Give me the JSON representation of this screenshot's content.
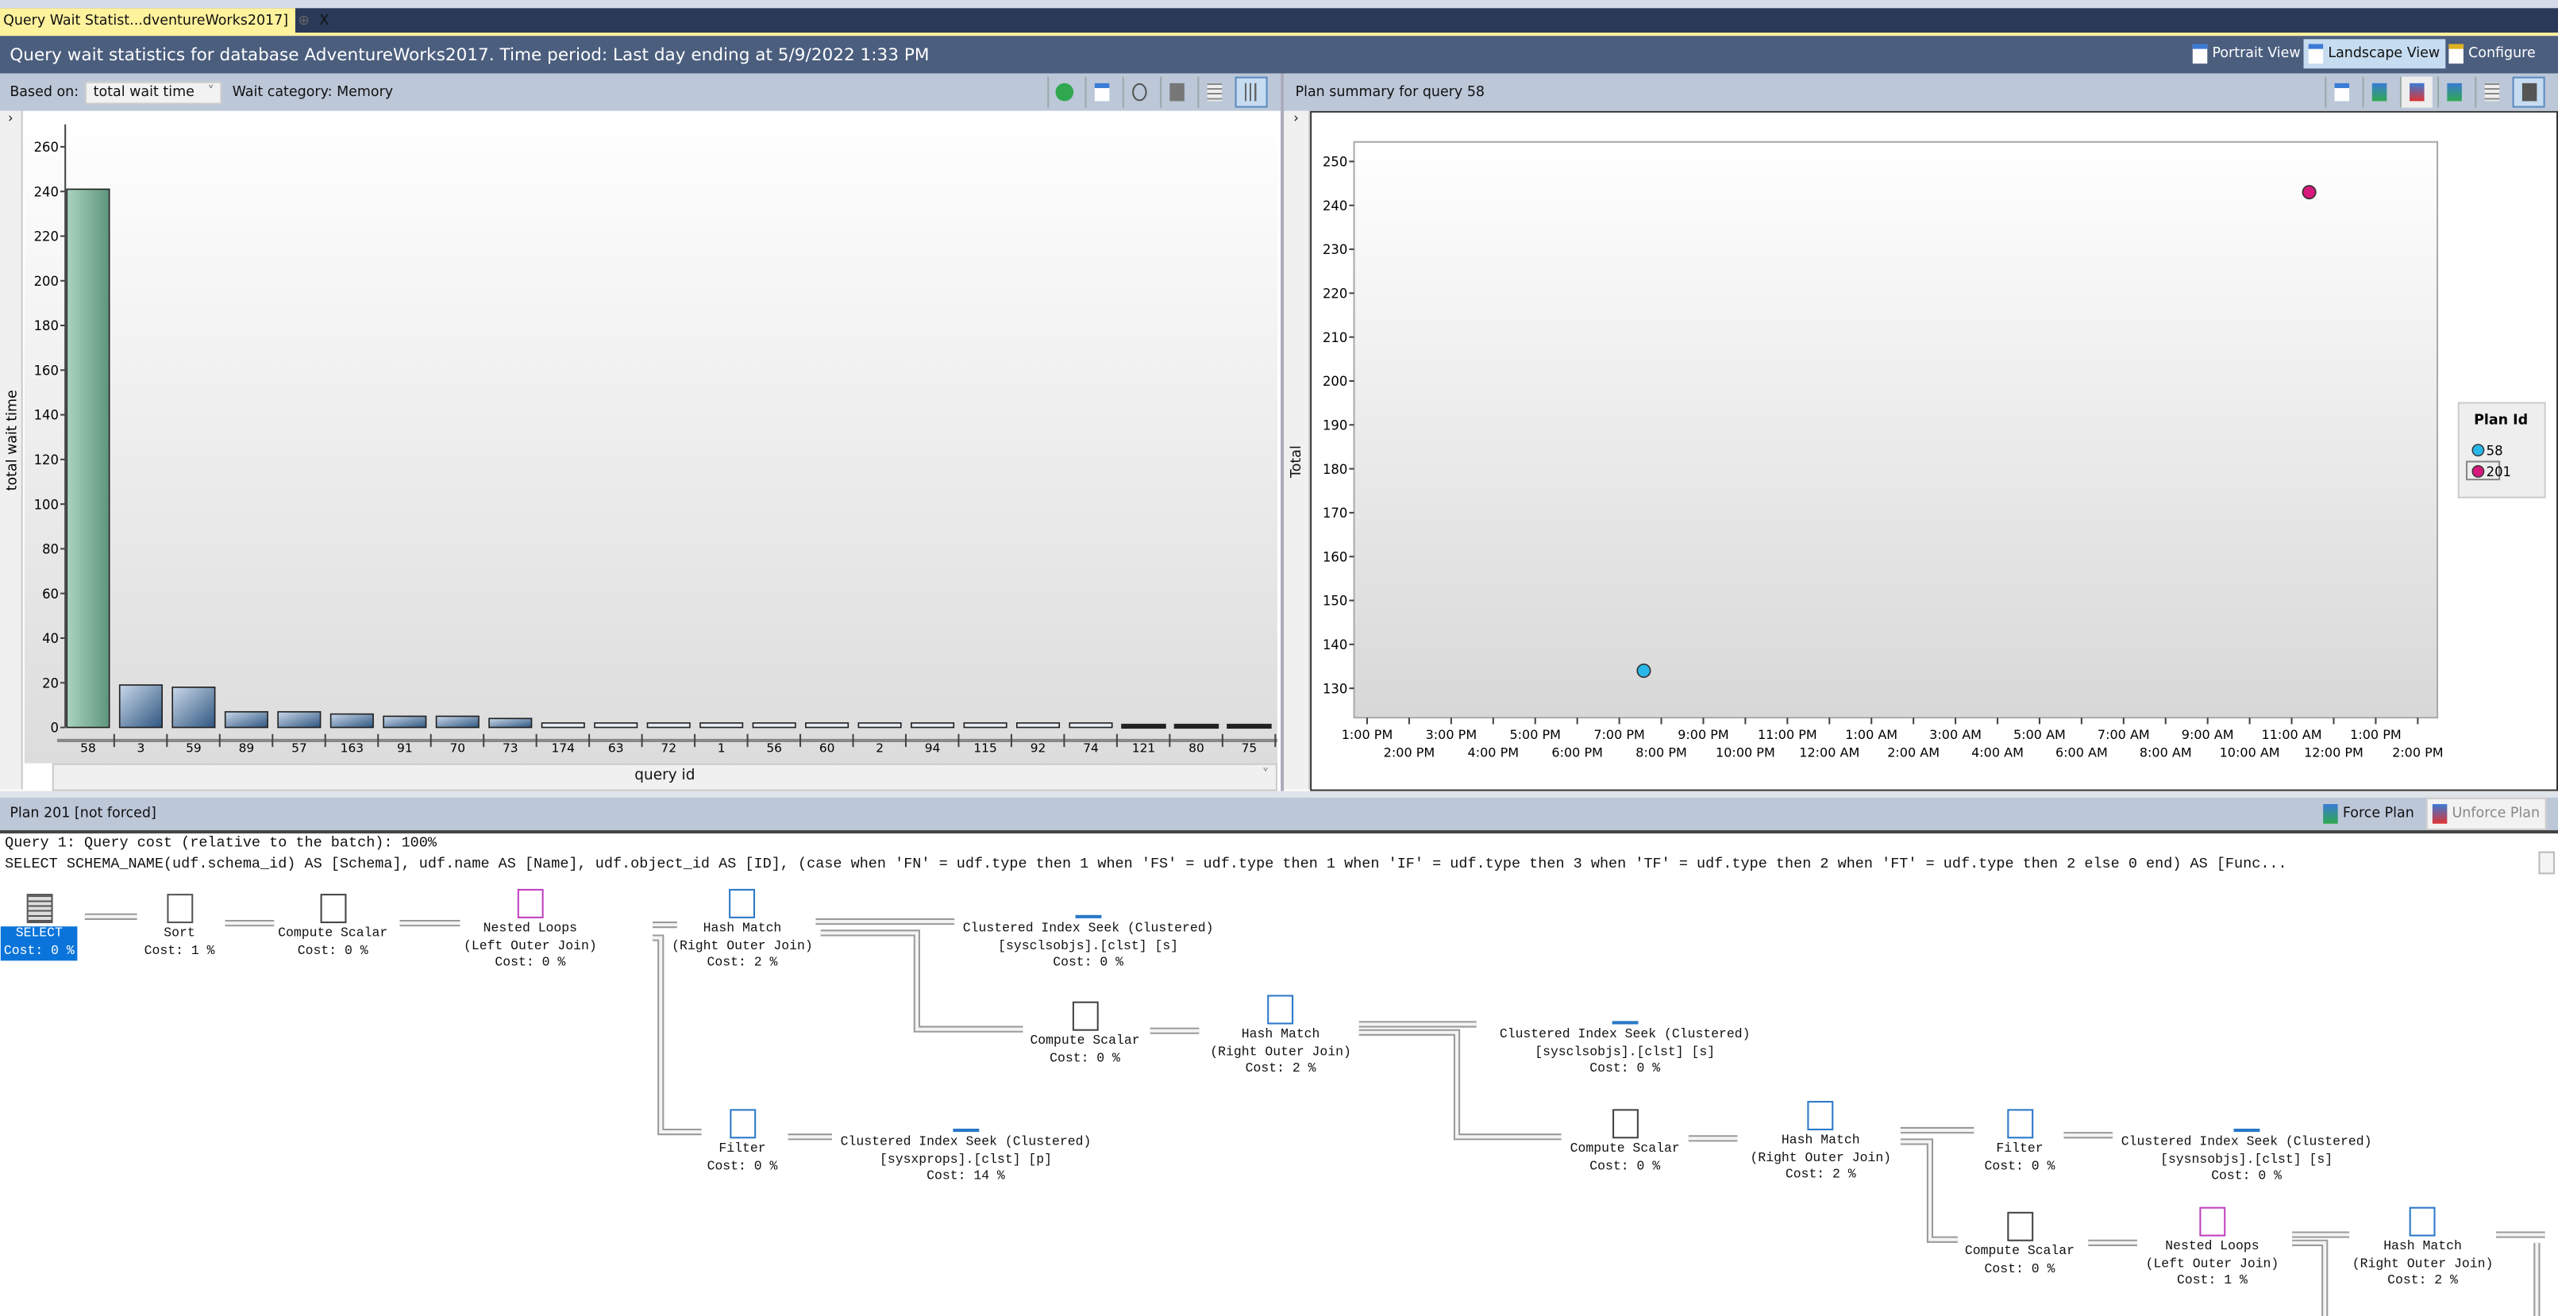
{
  "tab": {
    "title": "Query Wait Statist...dventureWorks2017]",
    "pin": "⊕",
    "close": "X"
  },
  "header": {
    "title": "Query wait statistics for database AdventureWorks2017. Time period: Last day ending at 5/9/2022 1:33 PM",
    "views": [
      {
        "label": "Portrait View"
      },
      {
        "label": "Landscape View"
      },
      {
        "label": "Configure"
      }
    ]
  },
  "left_toolbar": {
    "based_on_label": "Based on:",
    "based_on_value": "total wait time",
    "wait_category": "Wait category: Memory",
    "icons": [
      "back-icon",
      "refresh-icon",
      "track-query-icon",
      "view-query-icon",
      "grid-icon",
      "chart-icon"
    ]
  },
  "right_toolbar": {
    "title": "Plan summary for query 58",
    "icons": [
      "refresh-icon",
      "force-plan-icon",
      "unforce-plan-icon",
      "compare-plans-icon",
      "grid-icon",
      "chart-icon"
    ]
  },
  "chart_data": [
    {
      "type": "bar",
      "xlabel": "query id",
      "ylabel": "total wait time",
      "ylim": [
        0,
        270
      ],
      "yticks": [
        0,
        20,
        40,
        60,
        80,
        100,
        120,
        140,
        160,
        180,
        200,
        220,
        240,
        260
      ],
      "categories": [
        "58",
        "3",
        "59",
        "89",
        "57",
        "163",
        "91",
        "70",
        "73",
        "174",
        "63",
        "72",
        "1",
        "56",
        "60",
        "2",
        "94",
        "115",
        "92",
        "74",
        "121",
        "80",
        "75"
      ],
      "values": [
        241,
        19,
        18,
        7,
        7,
        6,
        5,
        5,
        4,
        2,
        2,
        2,
        2,
        2,
        2,
        2,
        2,
        2,
        2,
        2,
        0.5,
        0.5,
        0.5
      ],
      "highlight": "58",
      "colors": {
        "highlight": "#6a9e87",
        "bar": "#3b628f"
      }
    },
    {
      "type": "scatter",
      "ylabel": "Total",
      "ylim": [
        127,
        254
      ],
      "yticks": [
        130,
        140,
        150,
        160,
        170,
        180,
        190,
        200,
        210,
        220,
        230,
        240,
        250
      ],
      "xticks": [
        "1:00 PM",
        "2:00 PM",
        "3:00 PM",
        "4:00 PM",
        "5:00 PM",
        "6:00 PM",
        "7:00 PM",
        "8:00 PM",
        "9:00 PM",
        "10:00 PM",
        "11:00 PM",
        "12:00 AM",
        "1:00 AM",
        "2:00 AM",
        "3:00 AM",
        "4:00 AM",
        "5:00 AM",
        "6:00 AM",
        "7:00 AM",
        "8:00 AM",
        "9:00 AM",
        "10:00 AM",
        "11:00 AM",
        "12:00 PM",
        "1:00 PM",
        "2:00 PM"
      ],
      "legend_title": "Plan Id",
      "legend_position": "right",
      "series": [
        {
          "name": "58",
          "color": "#29b6e8",
          "points": [
            {
              "x": "7:35 PM",
              "y": 134
            }
          ]
        },
        {
          "name": "201",
          "color": "#d6197a",
          "points": [
            {
              "x": "11:25 AM",
              "y": 243
            }
          ]
        }
      ]
    }
  ],
  "plan": {
    "title": "Plan 201 [not forced]",
    "force": "Force Plan",
    "unforce": "Unforce Plan",
    "query_line": "Query 1: Query cost (relative to the batch): 100%",
    "sql": "SELECT SCHEMA_NAME(udf.schema_id) AS [Schema], udf.name AS [Name], udf.object_id AS [ID], (case when 'FN' = udf.type then 1 when 'FS' = udf.type then 1 when 'IF' = udf.type then 3 when 'TF' = udf.type then 2 when 'FT' = udf.type then 2 else 0 end) AS [Func...",
    "nodes": [
      {
        "icon": "select",
        "lines": [
          "SELECT",
          "Cost: 0 %"
        ]
      },
      {
        "icon": "sort",
        "lines": [
          "Sort",
          "Cost: 1 %"
        ]
      },
      {
        "icon": "compute-scalar",
        "lines": [
          "Compute Scalar",
          "Cost: 0 %"
        ]
      },
      {
        "icon": "nested-loops",
        "lines": [
          "Nested Loops",
          "(Left Outer Join)",
          "Cost: 0 %"
        ]
      },
      {
        "icon": "hash-match",
        "lines": [
          "Hash Match",
          "(Right Outer Join)",
          "Cost: 2 %"
        ]
      },
      {
        "icon": "index-seek",
        "lines": [
          "Clustered Index Seek (Clustered)",
          "[sysclsobjs].[clst] [s]",
          "Cost: 0 %"
        ]
      },
      {
        "icon": "compute-scalar",
        "lines": [
          "Compute Scalar",
          "Cost: 0 %"
        ]
      },
      {
        "icon": "hash-match",
        "lines": [
          "Hash Match",
          "(Right Outer Join)",
          "Cost: 2 %"
        ]
      },
      {
        "icon": "index-seek",
        "lines": [
          "Clustered Index Seek (Clustered)",
          "[sysclsobjs].[clst] [s]",
          "Cost: 0 %"
        ]
      },
      {
        "icon": "filter",
        "lines": [
          "Filter",
          "Cost: 0 %"
        ]
      },
      {
        "icon": "index-seek",
        "lines": [
          "Clustered Index Seek (Clustered)",
          "[sysxprops].[clst] [p]",
          "Cost: 14 %"
        ]
      },
      {
        "icon": "compute-scalar",
        "lines": [
          "Compute Scalar",
          "Cost: 0 %"
        ]
      },
      {
        "icon": "hash-match",
        "lines": [
          "Hash Match",
          "(Right Outer Join)",
          "Cost: 2 %"
        ]
      },
      {
        "icon": "filter",
        "lines": [
          "Filter",
          "Cost: 0 %"
        ]
      },
      {
        "icon": "index-seek",
        "lines": [
          "Clustered Index Seek (Clustered)",
          "[sysnsobjs].[clst] [s]",
          "Cost: 0 %"
        ]
      },
      {
        "icon": "compute-scalar",
        "lines": [
          "Compute Scalar",
          "Cost: 0 %"
        ]
      },
      {
        "icon": "nested-loops",
        "lines": [
          "Nested Loops",
          "(Left Outer Join)",
          "Cost: 1 %"
        ]
      },
      {
        "icon": "hash-match",
        "lines": [
          "Hash Match",
          "(Right Outer Join)",
          "Cost: 2 %"
        ]
      }
    ]
  }
}
